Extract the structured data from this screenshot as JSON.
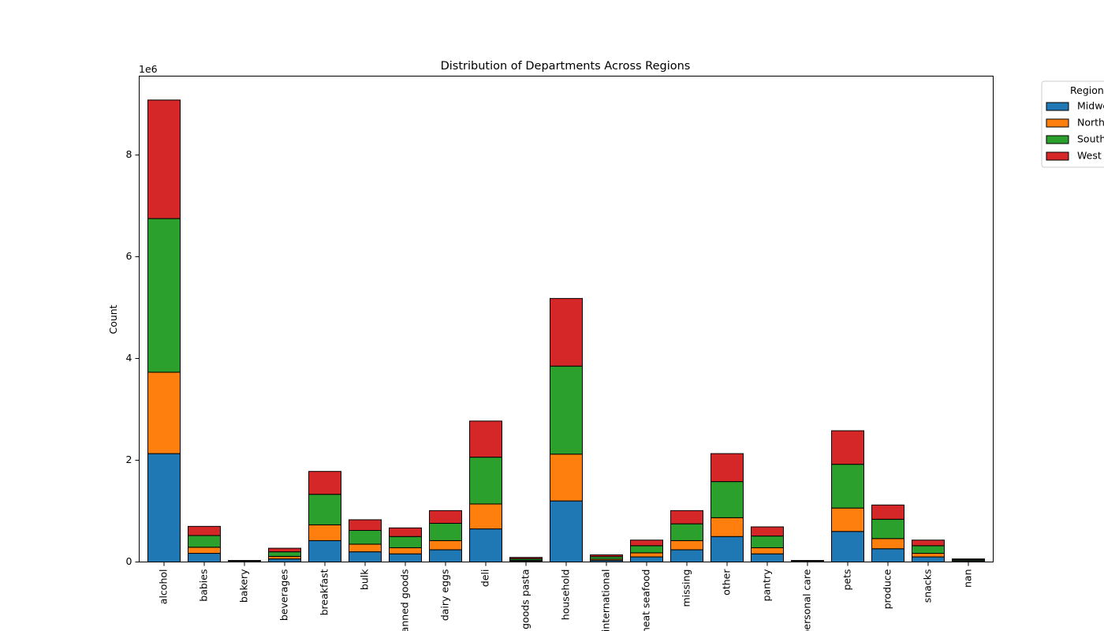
{
  "chart_data": {
    "type": "bar",
    "stacked": true,
    "title": "Distribution of Departments Across Regions",
    "xlabel": "",
    "ylabel": "Count",
    "y_scale_label": "1e6",
    "ylim": [
      0,
      9.55
    ],
    "yticks": [
      0,
      2,
      4,
      6,
      8
    ],
    "ytick_labels": [
      "0",
      "2",
      "4",
      "6",
      "8"
    ],
    "grid": false,
    "legend": {
      "title": "Region",
      "placement": "right-outside-top"
    },
    "categories": [
      "alcohol",
      "babies",
      "bakery",
      "beverages",
      "breakfast",
      "bulk",
      "canned goods",
      "dairy eggs",
      "deli",
      "dry goods pasta",
      "household",
      "international",
      "meat seafood",
      "missing",
      "other",
      "pantry",
      "personal care",
      "pets",
      "produce",
      "snacks",
      "nan"
    ],
    "series": [
      {
        "name": "Midwest",
        "color": "#1f77b4",
        "values": [
          2.13,
          0.17,
          0.008,
          0.06,
          0.42,
          0.2,
          0.16,
          0.24,
          0.65,
          0.02,
          1.2,
          0.03,
          0.1,
          0.24,
          0.5,
          0.16,
          0.008,
          0.6,
          0.26,
          0.1,
          0.015
        ]
      },
      {
        "name": "Northeast",
        "color": "#ff7f0e",
        "values": [
          1.6,
          0.12,
          0.006,
          0.05,
          0.31,
          0.15,
          0.12,
          0.18,
          0.49,
          0.015,
          0.92,
          0.025,
          0.08,
          0.18,
          0.37,
          0.12,
          0.006,
          0.46,
          0.2,
          0.07,
          0.01
        ]
      },
      {
        "name": "South",
        "color": "#2ca02c",
        "values": [
          3.02,
          0.23,
          0.011,
          0.09,
          0.6,
          0.27,
          0.22,
          0.34,
          0.92,
          0.03,
          1.73,
          0.05,
          0.14,
          0.33,
          0.71,
          0.23,
          0.011,
          0.86,
          0.38,
          0.15,
          0.02
        ]
      },
      {
        "name": "West",
        "color": "#d62728",
        "values": [
          2.33,
          0.18,
          0.005,
          0.07,
          0.45,
          0.21,
          0.17,
          0.25,
          0.71,
          0.025,
          1.33,
          0.035,
          0.11,
          0.26,
          0.55,
          0.18,
          0.005,
          0.66,
          0.28,
          0.11,
          0.015
        ]
      }
    ]
  }
}
